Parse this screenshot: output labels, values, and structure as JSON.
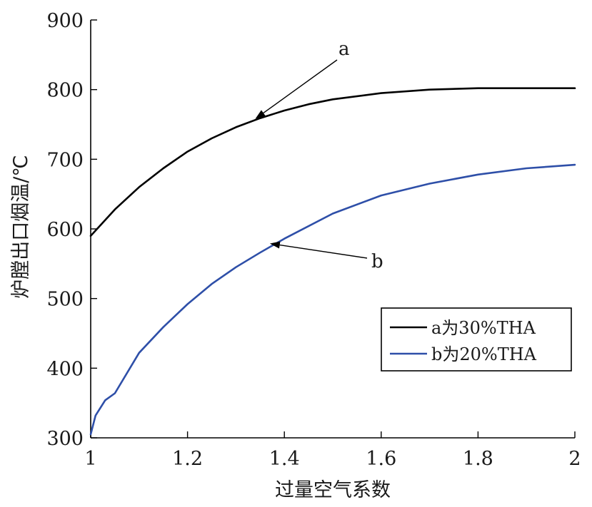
{
  "chart_data": {
    "type": "line",
    "xlabel": "过量空气系数",
    "ylabel": "炉膛出口烟温/℃",
    "xlim": [
      1,
      2
    ],
    "ylim": [
      300,
      900
    ],
    "xticks": [
      1,
      1.2,
      1.4,
      1.6,
      1.8,
      2
    ],
    "xtick_labels": [
      "1",
      "1.2",
      "1.4",
      "1.6",
      "1.8",
      "2"
    ],
    "yticks": [
      300,
      400,
      500,
      600,
      700,
      800,
      900
    ],
    "ytick_labels": [
      "300",
      "400",
      "500",
      "600",
      "700",
      "800",
      "900"
    ],
    "grid": false,
    "legend_position": "lower-right",
    "series": [
      {
        "name": "a为30%THA",
        "color": "#000000",
        "x": [
          1.0,
          1.05,
          1.1,
          1.15,
          1.2,
          1.25,
          1.3,
          1.35,
          1.4,
          1.45,
          1.5,
          1.6,
          1.7,
          1.8,
          1.9,
          2.0
        ],
        "y": [
          590,
          628,
          660,
          687,
          711,
          730,
          746,
          759,
          770,
          779,
          786,
          795,
          800,
          802,
          802,
          802
        ]
      },
      {
        "name": "b为20%THA",
        "color": "#2e4fa8",
        "x": [
          1.0,
          1.01,
          1.03,
          1.05,
          1.1,
          1.15,
          1.2,
          1.25,
          1.3,
          1.35,
          1.4,
          1.5,
          1.6,
          1.7,
          1.8,
          1.9,
          2.0
        ],
        "y": [
          305,
          332,
          354,
          364,
          422,
          459,
          492,
          521,
          545,
          566,
          586,
          622,
          648,
          665,
          678,
          687,
          692
        ]
      }
    ],
    "annotations": [
      {
        "text": "a",
        "series": 0,
        "point_x": 1.34,
        "point_y": 758
      },
      {
        "text": "b",
        "series": 1,
        "point_x": 1.37,
        "point_y": 579
      }
    ]
  }
}
